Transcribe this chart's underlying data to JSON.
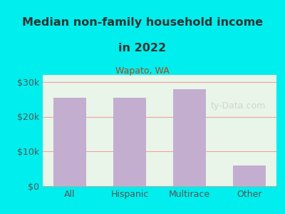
{
  "categories": [
    "All",
    "Hispanic",
    "Multirace",
    "Other"
  ],
  "values": [
    25500,
    25500,
    28000,
    6000
  ],
  "bar_color": "#c4aed0",
  "title_line1": "Median non-family household income",
  "title_line2": "in 2022",
  "subtitle": "Wapato, WA",
  "subtitle_color": "#b5451b",
  "title_color": "#333333",
  "background_color": "#00eeee",
  "plot_bg_top": "#e8f5e8",
  "plot_bg_bottom": "#f5f5ee",
  "ylim": [
    0,
    32000
  ],
  "yticks": [
    0,
    10000,
    20000,
    30000
  ],
  "ytick_labels": [
    "$0",
    "$10k",
    "$20k",
    "$30k"
  ],
  "watermark": "ty-Data.com",
  "grid_color": "#f0a0a0",
  "xlabel_color": "#555555",
  "tick_color": "#555555"
}
